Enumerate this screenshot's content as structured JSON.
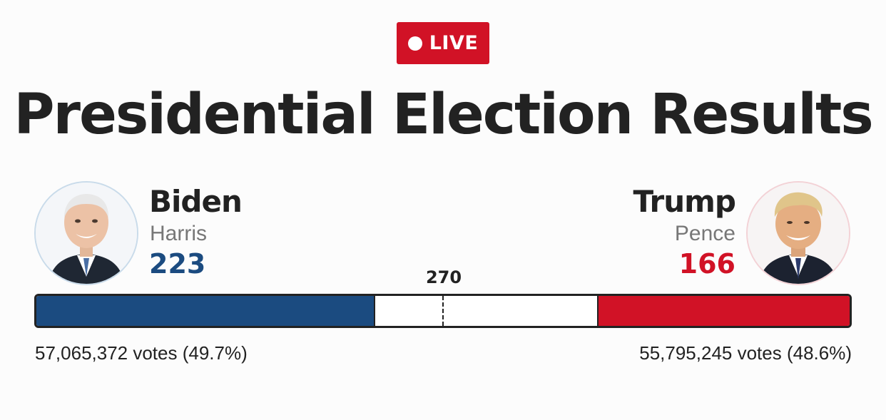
{
  "badge": {
    "label": "LIVE",
    "color": "#d11226"
  },
  "title": "Presidential Election Results",
  "threshold": {
    "label": "270",
    "value": 270,
    "total": 538
  },
  "candidates": {
    "left": {
      "name": "Biden",
      "running_mate": "Harris",
      "electoral_votes": "223",
      "electoral_votes_value": 223,
      "popular_votes": "57,065,372 votes (49.7%)",
      "color": "#1b4b80",
      "avatar_icon": "candidate-portrait"
    },
    "right": {
      "name": "Trump",
      "running_mate": "Pence",
      "electoral_votes": "166",
      "electoral_votes_value": 166,
      "popular_votes": "55,795,245 votes (48.6%)",
      "color": "#d11226",
      "avatar_icon": "candidate-portrait"
    }
  }
}
